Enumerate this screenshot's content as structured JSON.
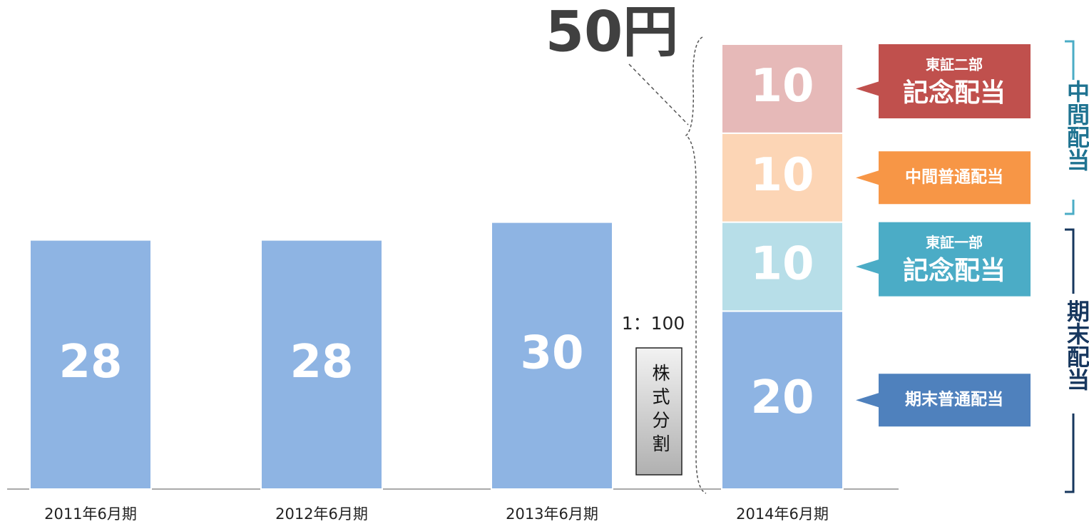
{
  "chart_data": {
    "type": "bar",
    "stacked": true,
    "categories": [
      "2011年6月期",
      "2012年6月期",
      "2013年6月期",
      "2014年6月期"
    ],
    "series": [
      {
        "color": "#8eb4e3",
        "values": [
          28,
          28,
          30,
          null
        ]
      },
      {
        "name": "期末普通配当",
        "color": "#8eb4e3",
        "callout_color": "#4f81bd",
        "values": [
          null,
          null,
          null,
          20
        ]
      },
      {
        "name": "記念配当",
        "group": "東証一部",
        "color": "#b7dee8",
        "callout_color": "#4bacc6",
        "values": [
          null,
          null,
          null,
          10
        ]
      },
      {
        "name": "中間普通配当",
        "color": "#fcd5b5",
        "callout_color": "#f79646",
        "values": [
          null,
          null,
          null,
          10
        ]
      },
      {
        "name": "記念配当",
        "group": "東証二部",
        "color": "#e6b9b8",
        "callout_color": "#c0504d",
        "values": [
          null,
          null,
          null,
          10
        ]
      }
    ],
    "total_label": "50円",
    "split": {
      "ratio": "1：100",
      "label": "株式分割"
    },
    "brackets": [
      {
        "label": "中間配当",
        "color": "#1f7391"
      },
      {
        "label": "期末配当",
        "color": "#17375e"
      }
    ]
  }
}
